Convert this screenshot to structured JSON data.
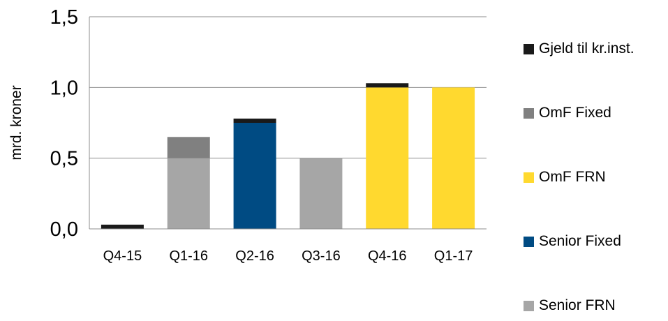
{
  "chart_data": {
    "type": "bar",
    "stacked": true,
    "title": "",
    "xlabel": "",
    "ylabel": "mrd. kroner",
    "categories": [
      "Q4-15",
      "Q1-16",
      "Q2-16",
      "Q3-16",
      "Q4-16",
      "Q1-17"
    ],
    "ylim": [
      0,
      1.5
    ],
    "yticks": [
      "0,0",
      "0,5",
      "1,0",
      "1,5"
    ],
    "ytick_values": [
      0,
      0.5,
      1.0,
      1.5
    ],
    "grid": true,
    "legend_position": "right",
    "series": [
      {
        "name": "Senior FRN",
        "color": "#a6a6a6",
        "values": [
          0,
          0.5,
          0,
          0.5,
          0,
          0
        ]
      },
      {
        "name": "Senior Fixed",
        "color": "#004b83",
        "values": [
          0,
          0,
          0.75,
          0,
          0,
          0
        ]
      },
      {
        "name": "OmF FRN",
        "color": "#ffd92f",
        "values": [
          0,
          0,
          0,
          0,
          1.0,
          1.0
        ]
      },
      {
        "name": "OmF Fixed",
        "color": "#808080",
        "values": [
          0,
          0.15,
          0,
          0,
          0,
          0
        ]
      },
      {
        "name": "Gjeld til kr.inst.",
        "color": "#1a1a1a",
        "values": [
          0.03,
          0,
          0.03,
          0,
          0.03,
          0
        ]
      }
    ],
    "legend_order": [
      "Gjeld til kr.inst.",
      "OmF Fixed",
      "OmF FRN",
      "Senior Fixed",
      "Senior FRN"
    ]
  }
}
